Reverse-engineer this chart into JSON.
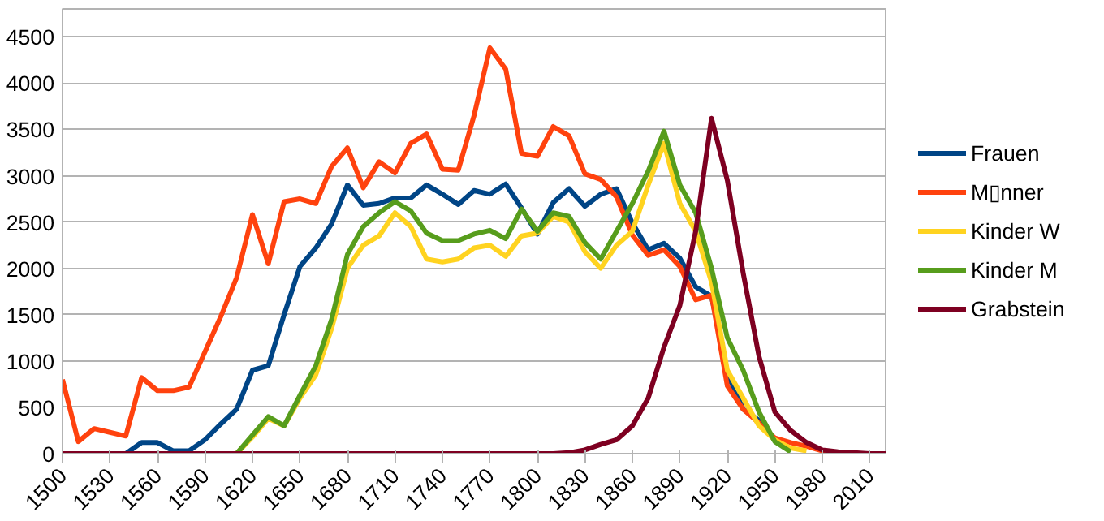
{
  "chart_data": {
    "type": "line",
    "x": [
      1500,
      1510,
      1520,
      1530,
      1540,
      1550,
      1560,
      1570,
      1580,
      1590,
      1600,
      1610,
      1620,
      1630,
      1640,
      1650,
      1660,
      1670,
      1680,
      1690,
      1700,
      1710,
      1720,
      1730,
      1740,
      1750,
      1760,
      1770,
      1780,
      1790,
      1800,
      1810,
      1820,
      1830,
      1840,
      1850,
      1860,
      1870,
      1880,
      1890,
      1900,
      1910,
      1920,
      1930,
      1940,
      1950,
      1960,
      1970,
      1980,
      1990,
      2000,
      2010,
      2020
    ],
    "series": [
      {
        "name": "Frauen",
        "color": "#004586",
        "values": [
          null,
          null,
          null,
          null,
          0,
          120,
          120,
          30,
          30,
          150,
          320,
          480,
          900,
          950,
          1500,
          2020,
          2220,
          2480,
          2900,
          2680,
          2700,
          2760,
          2760,
          2900,
          2800,
          2690,
          2840,
          2800,
          2910,
          2650,
          2370,
          2710,
          2860,
          2670,
          2800,
          2860,
          2490,
          2200,
          2270,
          2110,
          1800,
          1700,
          860,
          480,
          360,
          140,
          null,
          null,
          null,
          null,
          null,
          null,
          null
        ]
      },
      {
        "name": "M▯nner",
        "color": "#ff420e",
        "values": [
          800,
          130,
          270,
          230,
          190,
          820,
          680,
          680,
          720,
          1100,
          1480,
          1900,
          2580,
          2050,
          2720,
          2750,
          2700,
          3100,
          3300,
          2870,
          3150,
          3030,
          3350,
          3450,
          3070,
          3060,
          3650,
          4380,
          4150,
          3240,
          3210,
          3530,
          3430,
          3020,
          2960,
          2770,
          2360,
          2140,
          2200,
          2020,
          1660,
          1710,
          730,
          480,
          330,
          170,
          120,
          80,
          30,
          10,
          null,
          null,
          null
        ]
      },
      {
        "name": "Kinder W",
        "color": "#ffd320",
        "values": [
          null,
          null,
          null,
          null,
          null,
          null,
          null,
          null,
          null,
          null,
          null,
          0,
          180,
          380,
          300,
          600,
          850,
          1350,
          2000,
          2250,
          2350,
          2600,
          2450,
          2100,
          2070,
          2100,
          2220,
          2250,
          2130,
          2350,
          2380,
          2560,
          2500,
          2180,
          2000,
          2250,
          2400,
          2900,
          3350,
          2700,
          2400,
          1850,
          900,
          600,
          300,
          150,
          60,
          30,
          null,
          null,
          null,
          null,
          null
        ]
      },
      {
        "name": "Kinder M",
        "color": "#579d1c",
        "values": [
          null,
          null,
          null,
          null,
          null,
          null,
          null,
          null,
          null,
          null,
          null,
          0,
          200,
          400,
          300,
          630,
          950,
          1450,
          2150,
          2450,
          2600,
          2720,
          2620,
          2380,
          2300,
          2300,
          2370,
          2410,
          2320,
          2640,
          2400,
          2600,
          2560,
          2280,
          2100,
          2400,
          2700,
          3050,
          3480,
          2900,
          2600,
          2000,
          1250,
          900,
          450,
          130,
          20,
          null,
          null,
          null,
          null,
          null,
          null
        ]
      },
      {
        "name": "Grabstein",
        "color": "#7e0021",
        "values": [
          0,
          0,
          0,
          0,
          0,
          0,
          0,
          0,
          0,
          0,
          0,
          0,
          0,
          0,
          0,
          0,
          0,
          0,
          0,
          0,
          0,
          0,
          0,
          0,
          0,
          0,
          0,
          0,
          0,
          0,
          0,
          0,
          10,
          40,
          100,
          150,
          300,
          600,
          1150,
          1600,
          2400,
          3620,
          2950,
          1950,
          1050,
          450,
          250,
          120,
          40,
          20,
          10,
          0,
          0
        ]
      }
    ],
    "xlim": [
      1500,
      2020
    ],
    "xticks": [
      1500,
      1530,
      1560,
      1590,
      1620,
      1650,
      1680,
      1710,
      1740,
      1770,
      1800,
      1830,
      1860,
      1890,
      1920,
      1950,
      1980,
      2010
    ],
    "ylim": [
      0,
      4800
    ],
    "yticks": [
      0,
      500,
      1000,
      1500,
      2000,
      2500,
      3000,
      3500,
      4000,
      4500
    ],
    "grid": "y",
    "legend": "right"
  }
}
